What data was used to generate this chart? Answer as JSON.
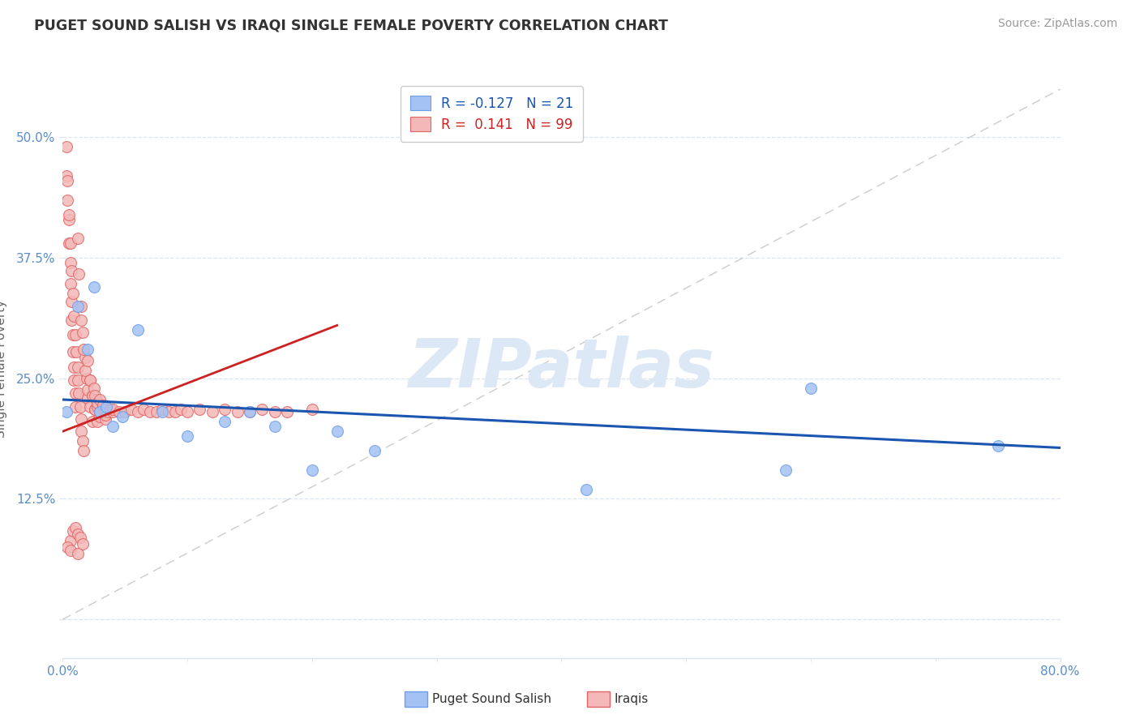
{
  "title": "PUGET SOUND SALISH VS IRAQI SINGLE FEMALE POVERTY CORRELATION CHART",
  "source": "Source: ZipAtlas.com",
  "xlabel_blue": "Puget Sound Salish",
  "xlabel_pink": "Iraqis",
  "ylabel": "Single Female Poverty",
  "xlim": [
    0.0,
    0.8
  ],
  "ylim": [
    -0.04,
    0.56
  ],
  "xticks": [
    0.0,
    0.1,
    0.2,
    0.3,
    0.4,
    0.5,
    0.6,
    0.7,
    0.8
  ],
  "xticklabels": [
    "0.0%",
    "",
    "",
    "",
    "",
    "",
    "",
    "",
    "80.0%"
  ],
  "yticks": [
    0.0,
    0.125,
    0.25,
    0.375,
    0.5
  ],
  "yticklabels": [
    "",
    "12.5%",
    "25.0%",
    "37.5%",
    "50.0%"
  ],
  "legend_blue_r": "-0.127",
  "legend_blue_n": "21",
  "legend_pink_r": "0.141",
  "legend_pink_n": "99",
  "blue_color": "#a4c2f4",
  "blue_edge": "#6d9eeb",
  "pink_color": "#f4b8b8",
  "pink_edge": "#e06666",
  "trendline_blue_color": "#1a56b0",
  "trendline_pink_color": "#cc2222",
  "refline_color": "#cccccc",
  "watermark": "ZIPatlas",
  "watermark_color": "#dce8f5",
  "grid_color": "#dde5f0",
  "tick_color": "#5b8dc8",
  "blue_scatter_x": [
    0.003,
    0.012,
    0.02,
    0.025,
    0.03,
    0.035,
    0.04,
    0.048,
    0.06,
    0.08,
    0.1,
    0.13,
    0.15,
    0.17,
    0.2,
    0.22,
    0.25,
    0.42,
    0.58,
    0.6,
    0.75
  ],
  "blue_scatter_y": [
    0.215,
    0.325,
    0.28,
    0.345,
    0.215,
    0.22,
    0.2,
    0.21,
    0.3,
    0.215,
    0.19,
    0.205,
    0.215,
    0.2,
    0.155,
    0.195,
    0.175,
    0.135,
    0.155,
    0.24,
    0.18
  ],
  "pink_scatter_x": [
    0.003,
    0.004,
    0.005,
    0.005,
    0.006,
    0.006,
    0.007,
    0.007,
    0.008,
    0.008,
    0.009,
    0.009,
    0.01,
    0.01,
    0.003,
    0.004,
    0.005,
    0.006,
    0.007,
    0.008,
    0.009,
    0.01,
    0.011,
    0.012,
    0.012,
    0.013,
    0.014,
    0.015,
    0.015,
    0.016,
    0.017,
    0.012,
    0.013,
    0.015,
    0.016,
    0.018,
    0.019,
    0.02,
    0.015,
    0.017,
    0.018,
    0.02,
    0.022,
    0.024,
    0.02,
    0.022,
    0.024,
    0.026,
    0.022,
    0.024,
    0.026,
    0.028,
    0.025,
    0.027,
    0.026,
    0.028,
    0.03,
    0.028,
    0.03,
    0.03,
    0.032,
    0.034,
    0.032,
    0.034,
    0.034,
    0.036,
    0.038,
    0.04,
    0.04,
    0.045,
    0.05,
    0.055,
    0.06,
    0.065,
    0.07,
    0.075,
    0.08,
    0.085,
    0.09,
    0.095,
    0.1,
    0.11,
    0.12,
    0.13,
    0.14,
    0.15,
    0.16,
    0.17,
    0.18,
    0.2,
    0.006,
    0.008,
    0.01,
    0.012,
    0.014,
    0.016,
    0.004,
    0.006,
    0.012
  ],
  "pink_scatter_y": [
    0.46,
    0.435,
    0.415,
    0.39,
    0.37,
    0.348,
    0.33,
    0.31,
    0.295,
    0.278,
    0.262,
    0.248,
    0.235,
    0.22,
    0.49,
    0.455,
    0.42,
    0.39,
    0.362,
    0.338,
    0.315,
    0.295,
    0.278,
    0.262,
    0.248,
    0.235,
    0.22,
    0.208,
    0.195,
    0.185,
    0.175,
    0.395,
    0.358,
    0.325,
    0.298,
    0.272,
    0.25,
    0.23,
    0.31,
    0.28,
    0.258,
    0.238,
    0.22,
    0.205,
    0.268,
    0.248,
    0.232,
    0.218,
    0.248,
    0.232,
    0.218,
    0.205,
    0.24,
    0.228,
    0.232,
    0.22,
    0.21,
    0.225,
    0.215,
    0.228,
    0.218,
    0.208,
    0.222,
    0.212,
    0.218,
    0.215,
    0.218,
    0.215,
    0.218,
    0.215,
    0.215,
    0.218,
    0.215,
    0.218,
    0.215,
    0.215,
    0.218,
    0.215,
    0.215,
    0.218,
    0.215,
    0.218,
    0.215,
    0.218,
    0.215,
    0.215,
    0.218,
    0.215,
    0.215,
    0.218,
    0.082,
    0.092,
    0.095,
    0.088,
    0.085,
    0.078,
    0.075,
    0.072,
    0.068
  ],
  "blue_trend_x": [
    0.0,
    0.8
  ],
  "blue_trend_y": [
    0.228,
    0.178
  ],
  "pink_trend_x": [
    0.0,
    0.22
  ],
  "pink_trend_y": [
    0.195,
    0.305
  ]
}
